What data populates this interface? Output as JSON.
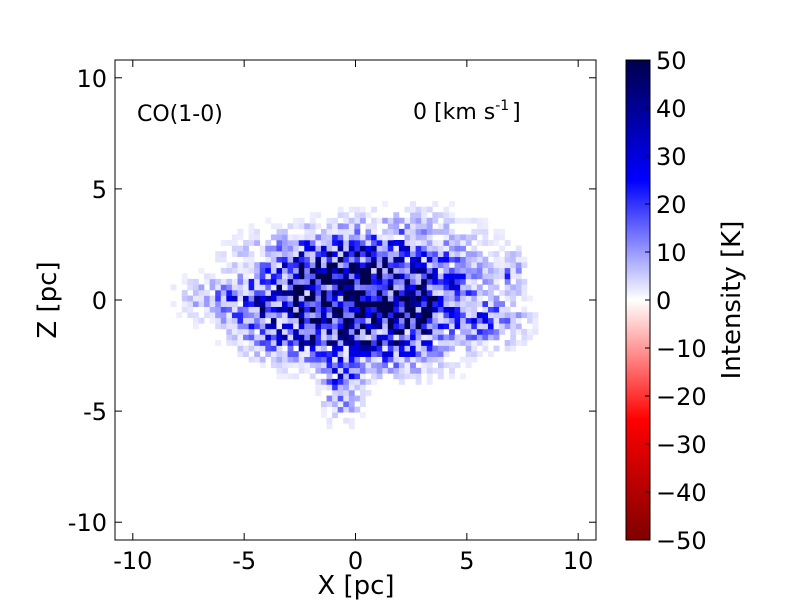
{
  "chart_data": {
    "type": "heatmap",
    "title": "",
    "annotations": {
      "line": "CO(1-0)",
      "velocity_prefix": "0 [km s",
      "velocity_exp": "-1",
      "velocity_suffix": "]"
    },
    "xlabel": "X [pc]",
    "ylabel": "Z [pc]",
    "xlim": [
      -10.8,
      10.8
    ],
    "ylim": [
      -10.8,
      10.8
    ],
    "xticks": [
      -10,
      -5,
      0,
      5,
      10
    ],
    "yticks": [
      -10,
      -5,
      0,
      5,
      10
    ],
    "xtick_labels": [
      "-10",
      "-5",
      "0",
      "5",
      "10"
    ],
    "ytick_labels": [
      "-10",
      "-5",
      "0",
      "5",
      "10"
    ],
    "grid": false,
    "pixel_size_pc": 0.25,
    "colorbar": {
      "label": "Intensity [K]",
      "min": -50,
      "max": 50,
      "ticks": [
        50,
        40,
        30,
        20,
        10,
        0,
        -10,
        -20,
        -30,
        -40,
        -50
      ],
      "tick_labels": [
        "50",
        "40",
        "30",
        "20",
        "10",
        "0",
        "−10",
        "−20",
        "−30",
        "−40",
        "−50"
      ],
      "colormap": "seismic",
      "colors": [
        "#7f0000",
        "#ff0000",
        "#ffffff",
        "#0000ff",
        "#00004c"
      ]
    },
    "emission_clumps": [
      {
        "x": 0.0,
        "z": 0.0,
        "peak": 40,
        "sx": 2.6,
        "sz": 1.4
      },
      {
        "x": -1.5,
        "z": 0.8,
        "peak": 30,
        "sx": 1.2,
        "sz": 0.8
      },
      {
        "x": 1.5,
        "z": -0.3,
        "peak": 38,
        "sx": 1.4,
        "sz": 0.9
      },
      {
        "x": -3.5,
        "z": -0.3,
        "peak": 22,
        "sx": 1.4,
        "sz": 0.7
      },
      {
        "x": 3.8,
        "z": 0.6,
        "peak": 14,
        "sx": 1.5,
        "sz": 1.0
      },
      {
        "x": -0.6,
        "z": -3.6,
        "peak": 22,
        "sx": 0.5,
        "sz": 1.0
      },
      {
        "x": -0.3,
        "z": 2.1,
        "peak": 16,
        "sx": 2.5,
        "sz": 0.7
      },
      {
        "x": 6.0,
        "z": -1.0,
        "peak": 16,
        "sx": 1.0,
        "sz": 0.6
      },
      {
        "x": -2.5,
        "z": -1.8,
        "peak": 18,
        "sx": 1.3,
        "sz": 0.6
      },
      {
        "x": 2.2,
        "z": -2.0,
        "peak": 14,
        "sx": 1.5,
        "sz": 0.8
      },
      {
        "x": 7.0,
        "z": 1.2,
        "peak": 14,
        "sx": 0.3,
        "sz": 0.6
      },
      {
        "x": -6.0,
        "z": 0.1,
        "peak": 10,
        "sx": 1.2,
        "sz": 0.5
      },
      {
        "x": 2.5,
        "z": 3.0,
        "peak": 6,
        "sx": 2.0,
        "sz": 0.8
      }
    ]
  }
}
